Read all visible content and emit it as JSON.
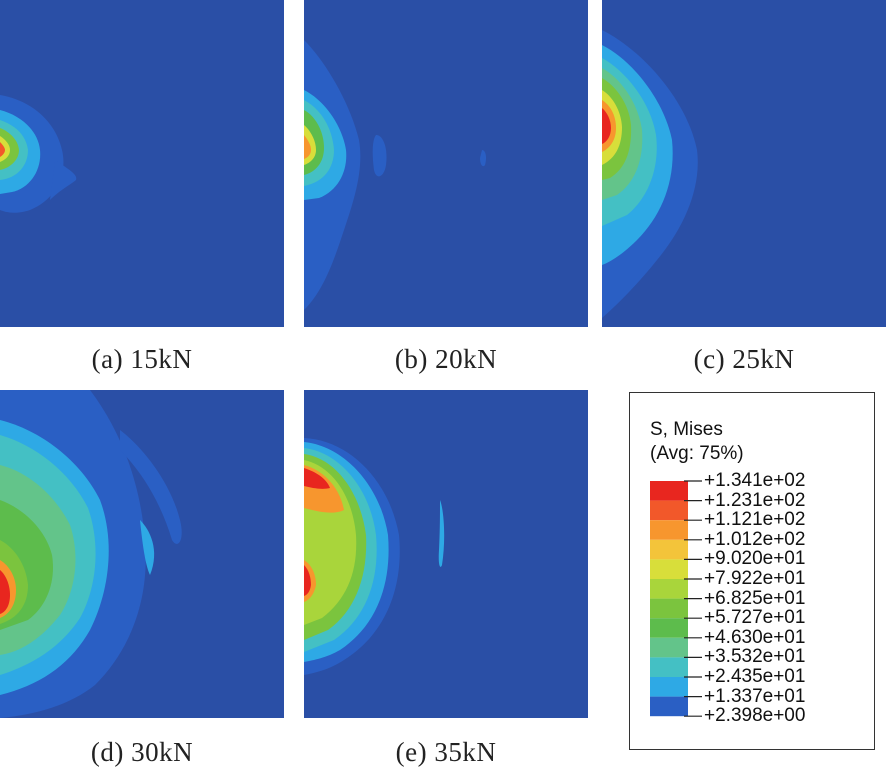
{
  "panels": [
    {
      "id": "a",
      "caption": "(a) 15kN"
    },
    {
      "id": "b",
      "caption": "(b) 20kN"
    },
    {
      "id": "c",
      "caption": "(c) 25kN"
    },
    {
      "id": "d",
      "caption": "(d) 30kN"
    },
    {
      "id": "e",
      "caption": "(e) 35kN"
    }
  ],
  "legend": {
    "title_line1": "S, Mises",
    "title_line2": "(Avg: 75%)",
    "levels": [
      "+1.341e+02",
      "+1.231e+02",
      "+1.121e+02",
      "+1.012e+02",
      "+9.020e+01",
      "+7.922e+01",
      "+6.825e+01",
      "+5.727e+01",
      "+4.630e+01",
      "+3.532e+01",
      "+2.435e+01",
      "+1.337e+01",
      "+2.398e+00"
    ],
    "colors": [
      "#e8261f",
      "#f2582a",
      "#f7962e",
      "#f3c43a",
      "#d8de3a",
      "#a9d53b",
      "#7bc43e",
      "#5dbc4c",
      "#63c48a",
      "#44c0c4",
      "#2ea9e5",
      "#2a5fc4"
    ]
  },
  "colors": {
    "background_field": "#2a4fa6"
  }
}
